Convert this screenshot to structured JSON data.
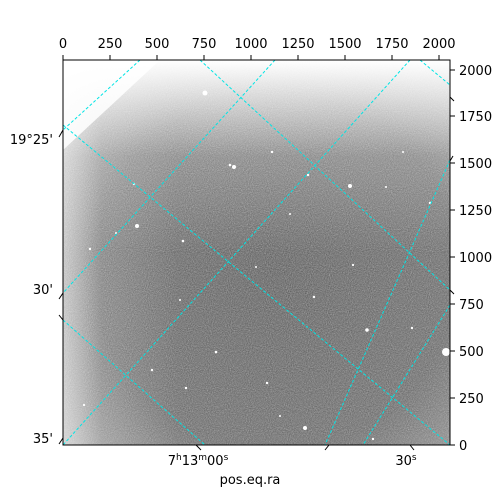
{
  "figure": {
    "xlabel": "pos.eq.ra",
    "pixel_x_ticks": [
      "0",
      "250",
      "500",
      "750",
      "1000",
      "1250",
      "1500",
      "1750",
      "2000"
    ],
    "pixel_y_ticks": [
      "0",
      "250",
      "500",
      "750",
      "1000",
      "1250",
      "1500",
      "1750",
      "2000"
    ],
    "ra_ticks": [
      {
        "label_main": "7",
        "label_h": "h",
        "label_mid": "13",
        "label_m": "m",
        "label_end": "00",
        "label_s": "s"
      },
      {
        "label_main": "30",
        "label_s": "s"
      }
    ],
    "dec_ticks": [
      "19°25'",
      "30'",
      "35'"
    ],
    "grid_color": "#00e5e5",
    "image_description_colors": {
      "sky_dark": "#3a3a3a",
      "sky_light": "#ffffff"
    }
  }
}
